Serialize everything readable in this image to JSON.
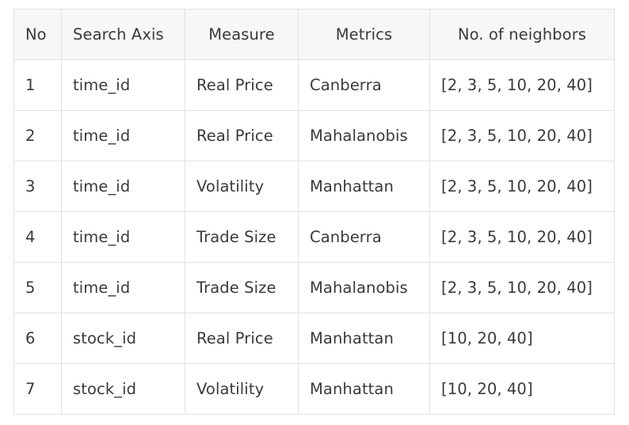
{
  "table": {
    "headers": [
      "No",
      "Search Axis",
      "Measure",
      "Metrics",
      "No. of neighbors"
    ],
    "rows": [
      [
        "1",
        "time_id",
        "Real Price",
        "Canberra",
        "[2, 3, 5, 10, 20, 40]"
      ],
      [
        "2",
        "time_id",
        "Real Price",
        "Mahalanobis",
        "[2, 3, 5, 10, 20, 40]"
      ],
      [
        "3",
        "time_id",
        "Volatility",
        "Manhattan",
        "[2, 3, 5, 10, 20, 40]"
      ],
      [
        "4",
        "time_id",
        "Trade Size",
        "Canberra",
        "[2, 3, 5, 10, 20, 40]"
      ],
      [
        "5",
        "time_id",
        "Trade Size",
        "Mahalanobis",
        "[2, 3, 5, 10, 20, 40]"
      ],
      [
        "6",
        "stock_id",
        "Real Price",
        "Manhattan",
        "[10, 20, 40]"
      ],
      [
        "7",
        "stock_id",
        "Volatility",
        "Manhattan",
        "[10, 20, 40]"
      ]
    ]
  }
}
